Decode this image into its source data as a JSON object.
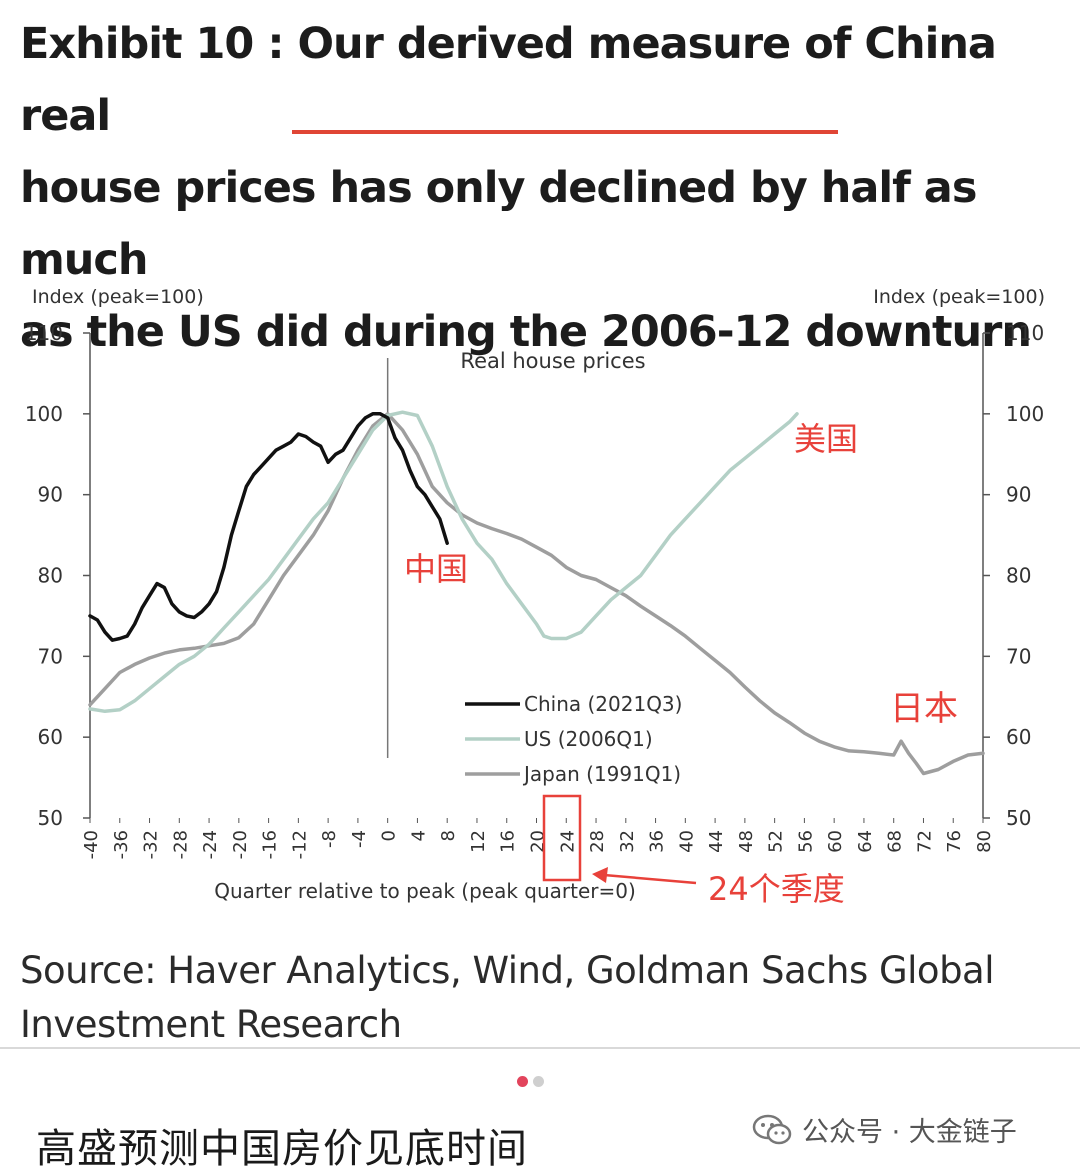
{
  "header": {
    "title_line1": "Exhibit 10 : Our derived measure of China real",
    "title_line2_prefix": "house prices ",
    "title_line2_highlight": "has only declined by half",
    "title_line2_suffix": " as much",
    "title_line3": "as the US did during the 2006-12 downturn"
  },
  "chart_data": {
    "type": "line",
    "title": "Real house prices",
    "ylabel_left": "Index (peak=100)",
    "ylabel_right": "Index (peak=100)",
    "xlabel": "Quarter relative to peak (peak quarter=0)",
    "ylim": [
      50,
      110
    ],
    "yticks": [
      50,
      60,
      70,
      80,
      90,
      100,
      110
    ],
    "xlim": [
      -40,
      80
    ],
    "xticks": [
      -40,
      -36,
      -32,
      -28,
      -24,
      -20,
      -16,
      -12,
      -8,
      -4,
      0,
      4,
      8,
      12,
      16,
      20,
      24,
      28,
      32,
      36,
      40,
      44,
      48,
      52,
      56,
      60,
      64,
      68,
      72,
      76,
      80
    ],
    "legend_placement": "center",
    "series": [
      {
        "name": "China (2021Q3)",
        "color": "#111111",
        "points": [
          [
            -40,
            75
          ],
          [
            -39,
            74.5
          ],
          [
            -38,
            73
          ],
          [
            -37,
            72
          ],
          [
            -36,
            72.2
          ],
          [
            -35,
            72.5
          ],
          [
            -34,
            74
          ],
          [
            -33,
            76
          ],
          [
            -32,
            77.5
          ],
          [
            -31,
            79
          ],
          [
            -30,
            78.5
          ],
          [
            -29,
            76.5
          ],
          [
            -28,
            75.5
          ],
          [
            -27,
            75
          ],
          [
            -26,
            74.8
          ],
          [
            -25,
            75.5
          ],
          [
            -24,
            76.5
          ],
          [
            -23,
            78
          ],
          [
            -22,
            81
          ],
          [
            -21,
            85
          ],
          [
            -20,
            88
          ],
          [
            -19,
            91
          ],
          [
            -18,
            92.5
          ],
          [
            -17,
            93.5
          ],
          [
            -16,
            94.5
          ],
          [
            -15,
            95.5
          ],
          [
            -14,
            96
          ],
          [
            -13,
            96.5
          ],
          [
            -12,
            97.5
          ],
          [
            -11,
            97.2
          ],
          [
            -10,
            96.5
          ],
          [
            -9,
            96
          ],
          [
            -8,
            94
          ],
          [
            -7,
            95
          ],
          [
            -6,
            95.5
          ],
          [
            -5,
            97
          ],
          [
            -4,
            98.5
          ],
          [
            -3,
            99.5
          ],
          [
            -2,
            100
          ],
          [
            -1,
            100
          ],
          [
            0,
            99.5
          ],
          [
            1,
            97
          ],
          [
            2,
            95.5
          ],
          [
            3,
            93
          ],
          [
            4,
            91
          ],
          [
            5,
            90
          ],
          [
            6,
            88.5
          ],
          [
            7,
            87
          ],
          [
            8,
            84
          ]
        ]
      },
      {
        "name": "US (2006Q1)",
        "color": "#b3d0c6",
        "points": [
          [
            -40,
            63.5
          ],
          [
            -38,
            63.2
          ],
          [
            -36,
            63.4
          ],
          [
            -34,
            64.5
          ],
          [
            -32,
            66
          ],
          [
            -30,
            67.5
          ],
          [
            -28,
            69
          ],
          [
            -26,
            70
          ],
          [
            -24,
            71.5
          ],
          [
            -22,
            73.5
          ],
          [
            -20,
            75.5
          ],
          [
            -18,
            77.5
          ],
          [
            -16,
            79.5
          ],
          [
            -14,
            82
          ],
          [
            -12,
            84.5
          ],
          [
            -10,
            87
          ],
          [
            -8,
            89
          ],
          [
            -6,
            92
          ],
          [
            -4,
            95
          ],
          [
            -2,
            98
          ],
          [
            0,
            99.8
          ],
          [
            2,
            100.2
          ],
          [
            4,
            99.8
          ],
          [
            6,
            96
          ],
          [
            8,
            91
          ],
          [
            10,
            87
          ],
          [
            12,
            84
          ],
          [
            14,
            82
          ],
          [
            16,
            79
          ],
          [
            18,
            76.5
          ],
          [
            20,
            74
          ],
          [
            21,
            72.5
          ],
          [
            22,
            72.2
          ],
          [
            24,
            72.2
          ],
          [
            26,
            73
          ],
          [
            28,
            75
          ],
          [
            30,
            77
          ],
          [
            32,
            78.5
          ],
          [
            34,
            80
          ],
          [
            36,
            82.5
          ],
          [
            38,
            85
          ],
          [
            40,
            87
          ],
          [
            42,
            89
          ],
          [
            44,
            91
          ],
          [
            46,
            93
          ],
          [
            48,
            94.5
          ],
          [
            50,
            96
          ],
          [
            52,
            97.5
          ],
          [
            54,
            99
          ],
          [
            55,
            100
          ]
        ]
      },
      {
        "name": "Japan (1991Q1)",
        "color": "#9e9e9e",
        "points": [
          [
            -40,
            64
          ],
          [
            -38,
            66
          ],
          [
            -36,
            68
          ],
          [
            -34,
            69
          ],
          [
            -32,
            69.8
          ],
          [
            -30,
            70.4
          ],
          [
            -28,
            70.8
          ],
          [
            -26,
            71
          ],
          [
            -24,
            71.3
          ],
          [
            -22,
            71.6
          ],
          [
            -20,
            72.3
          ],
          [
            -18,
            74
          ],
          [
            -16,
            77
          ],
          [
            -14,
            80
          ],
          [
            -12,
            82.5
          ],
          [
            -10,
            85
          ],
          [
            -8,
            88
          ],
          [
            -6,
            92
          ],
          [
            -4,
            95.5
          ],
          [
            -2,
            98.5
          ],
          [
            0,
            100
          ],
          [
            2,
            98
          ],
          [
            4,
            95
          ],
          [
            6,
            91
          ],
          [
            8,
            89
          ],
          [
            10,
            87.5
          ],
          [
            12,
            86.5
          ],
          [
            14,
            85.8
          ],
          [
            16,
            85.2
          ],
          [
            18,
            84.5
          ],
          [
            20,
            83.5
          ],
          [
            22,
            82.5
          ],
          [
            24,
            81
          ],
          [
            26,
            80
          ],
          [
            28,
            79.5
          ],
          [
            30,
            78.5
          ],
          [
            32,
            77.5
          ],
          [
            34,
            76.2
          ],
          [
            36,
            75
          ],
          [
            38,
            73.8
          ],
          [
            40,
            72.5
          ],
          [
            42,
            71
          ],
          [
            44,
            69.5
          ],
          [
            46,
            68
          ],
          [
            48,
            66.2
          ],
          [
            50,
            64.5
          ],
          [
            52,
            63
          ],
          [
            54,
            61.8
          ],
          [
            56,
            60.5
          ],
          [
            58,
            59.5
          ],
          [
            60,
            58.8
          ],
          [
            62,
            58.3
          ],
          [
            64,
            58.2
          ],
          [
            66,
            58
          ],
          [
            68,
            57.8
          ],
          [
            69,
            59.5
          ],
          [
            70,
            58
          ],
          [
            71,
            56.8
          ],
          [
            72,
            55.5
          ],
          [
            74,
            56
          ],
          [
            76,
            57
          ],
          [
            78,
            57.8
          ],
          [
            80,
            58
          ]
        ]
      }
    ],
    "annotations": {
      "us_label": "美国",
      "china_label": "中国",
      "japan_label": "日本",
      "quarter24_label": "24个季度"
    },
    "annotation_color": "#e8413a"
  },
  "source": {
    "line1": "Source: Haver Analytics, Wind, Goldman Sachs Global",
    "line2": "Investment Research"
  },
  "footer": {
    "bottom_title": "高盛预测中国房价见底时间",
    "watermark": "公众号 · 大金链子",
    "watermark_icon": "wechat-icon"
  }
}
